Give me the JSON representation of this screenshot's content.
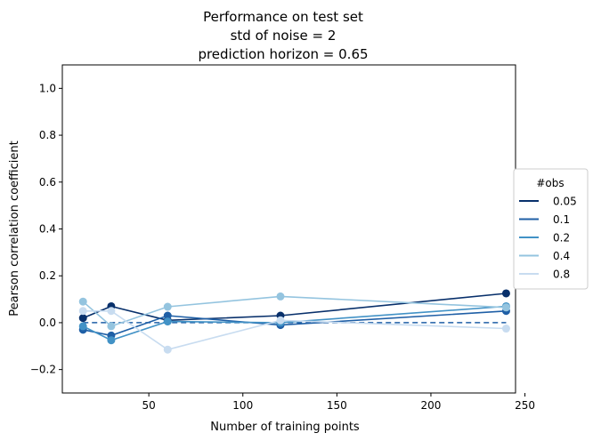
{
  "chart_data": {
    "type": "line",
    "title_lines": [
      "Performance on test set",
      "std of noise = 2",
      "prediction horizon = 0.65"
    ],
    "xlabel": "Number of training points",
    "ylabel": "Pearson correlation coefficient",
    "xlim": [
      4,
      245
    ],
    "ylim": [
      -0.3,
      1.1
    ],
    "xticks": [
      50,
      100,
      150,
      200,
      250
    ],
    "yticks": [
      -0.2,
      0.0,
      0.2,
      0.4,
      0.6,
      0.8,
      1.0
    ],
    "ytick_labels": [
      "−0.2",
      "0.0",
      "0.2",
      "0.4",
      "0.6",
      "0.8",
      "1.0"
    ],
    "grid": false,
    "legend": {
      "title": "#obs",
      "placement": "outside-right"
    },
    "baseline": {
      "y": 0.0,
      "x": [
        15,
        240
      ],
      "style": "dashed",
      "color": "#1f5fa6"
    },
    "x": [
      15,
      30,
      60,
      120,
      240
    ],
    "series": [
      {
        "name": "0.05",
        "color": "#08306b",
        "values": [
          0.02,
          0.07,
          0.01,
          0.03,
          0.125
        ]
      },
      {
        "name": "0.1",
        "color": "#1f5fa6",
        "values": [
          -0.03,
          -0.055,
          0.03,
          -0.01,
          0.05
        ]
      },
      {
        "name": "0.2",
        "color": "#4292c6",
        "values": [
          -0.015,
          -0.075,
          0.005,
          0.0,
          0.07
        ]
      },
      {
        "name": "0.4",
        "color": "#94c4df",
        "values": [
          0.09,
          -0.015,
          0.068,
          0.112,
          0.065
        ]
      },
      {
        "name": "0.8",
        "color": "#c8dcf0",
        "values": [
          0.05,
          0.05,
          -0.115,
          0.01,
          -0.025
        ]
      }
    ]
  }
}
